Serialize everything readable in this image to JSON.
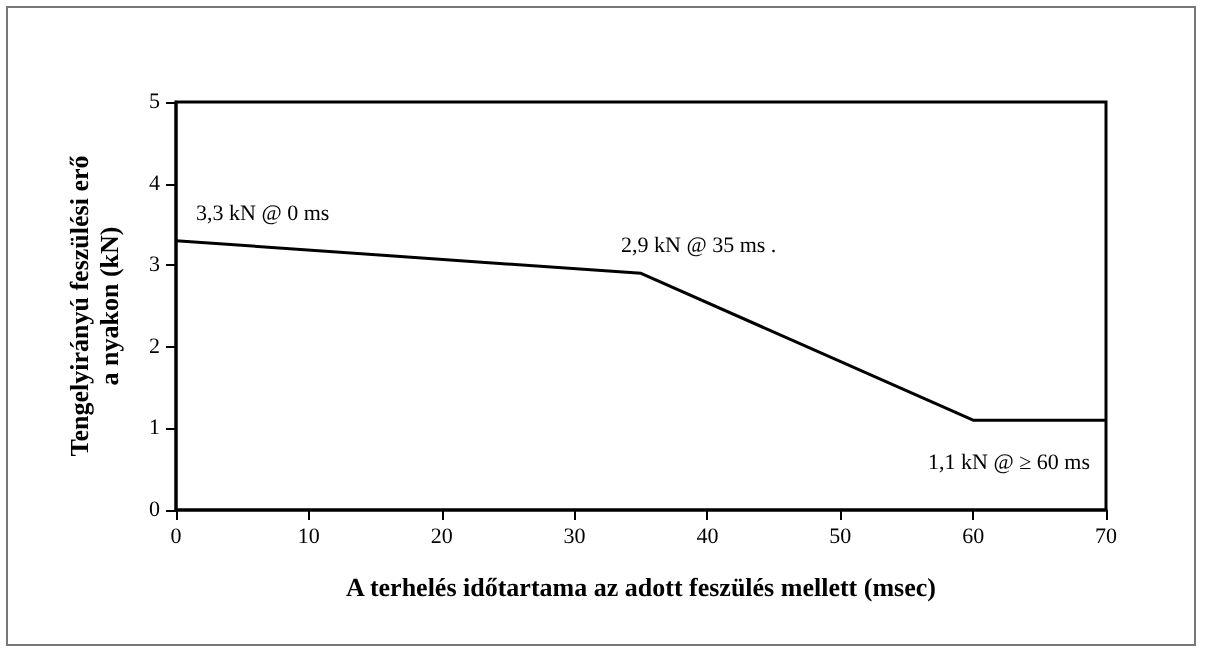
{
  "chart_data": {
    "type": "line",
    "xlabel": "A terhelés időtartama az adott feszülés mellett (msec)",
    "ylabel": "Tengelyirányú feszülési erő\na nyakon (kN)",
    "x": [
      0,
      35,
      60,
      70
    ],
    "series": [
      {
        "color": "#000000",
        "values": [
          3.3,
          2.9,
          1.1,
          1.1
        ]
      }
    ],
    "xlim": [
      0,
      70
    ],
    "xticks": [
      0,
      10,
      20,
      30,
      40,
      50,
      60,
      70
    ],
    "ylim": [
      0,
      5
    ],
    "yticks": [
      0,
      1,
      2,
      3,
      4,
      5
    ],
    "grid": false,
    "marker": "none",
    "line_style": "solid",
    "annotations": [
      {
        "text": "3,3 kN @ 0 ms",
        "x": 0,
        "y": 3.3
      },
      {
        "text": "2,9 kN @ 35 ms .",
        "x": 35,
        "y": 2.9
      },
      {
        "text": "1,1 kN @ ≥ 60 ms",
        "x": 60,
        "y": 1.1
      }
    ]
  }
}
